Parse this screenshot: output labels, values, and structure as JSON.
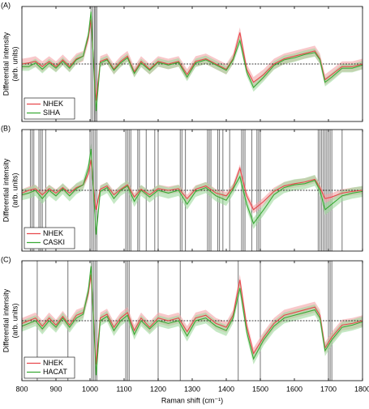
{
  "chart_data": [
    {
      "type": "line",
      "panel_label": "(A)",
      "ylabel": [
        "Differential intensity",
        "(arb. units)"
      ],
      "x": [
        800,
        820,
        840,
        860,
        880,
        900,
        920,
        940,
        960,
        980,
        995,
        1003,
        1010,
        1018,
        1030,
        1050,
        1070,
        1090,
        1110,
        1130,
        1150,
        1175,
        1200,
        1230,
        1260,
        1285,
        1310,
        1340,
        1370,
        1400,
        1420,
        1440,
        1460,
        1480,
        1510,
        1540,
        1570,
        1600,
        1630,
        1660,
        1675,
        1690,
        1710,
        1740,
        1770,
        1800
      ],
      "xlim": [
        800,
        1800
      ],
      "ylim": [
        -1.1,
        1.1
      ],
      "xticks": [
        800,
        900,
        1000,
        1100,
        1200,
        1300,
        1400,
        1500,
        1600,
        1700,
        1800
      ],
      "show_xtick_labels": false,
      "zero_line": true,
      "legend": "lower left",
      "highlights": [
        1003,
        1008,
        1013,
        1016,
        1020
      ],
      "series": [
        {
          "name": "NHEK",
          "color": "#e8474c",
          "band_color": "#f4a3a6",
          "error": 0.1,
          "values": [
            0,
            0.02,
            0.05,
            -0.05,
            0.05,
            -0.05,
            0.08,
            -0.05,
            0.1,
            0.15,
            0.5,
            0.85,
            0.1,
            -0.7,
            0.05,
            0.1,
            -0.1,
            0.05,
            0.15,
            -0.15,
            0.05,
            -0.1,
            0.05,
            0,
            0.05,
            -0.2,
            0.05,
            0.1,
            0,
            -0.1,
            0.1,
            0.6,
            -0.1,
            -0.35,
            -0.2,
            0,
            0.1,
            0.15,
            0.2,
            0.25,
            0.1,
            -0.3,
            -0.2,
            -0.05,
            -0.05,
            0
          ]
        },
        {
          "name": "SIHA",
          "color": "#3aaa35",
          "band_color": "#9fd89c",
          "error": 0.08,
          "values": [
            -0.05,
            -0.05,
            0.02,
            -0.1,
            0.02,
            -0.08,
            0.05,
            -0.08,
            0.08,
            0.15,
            0.55,
            1.0,
            0.05,
            -0.9,
            0.02,
            0.08,
            -0.12,
            0.02,
            0.12,
            -0.18,
            0.02,
            -0.12,
            0.03,
            -0.02,
            0.03,
            -0.25,
            0.02,
            0.08,
            -0.02,
            -0.12,
            0.08,
            0.45,
            -0.15,
            -0.45,
            -0.25,
            -0.03,
            0.08,
            0.12,
            0.18,
            0.22,
            0.08,
            -0.35,
            -0.25,
            -0.08,
            -0.08,
            -0.02
          ]
        }
      ]
    },
    {
      "type": "line",
      "panel_label": "(B)",
      "ylabel": [
        "Differential intensity",
        "(arb. units)"
      ],
      "x": [
        800,
        820,
        840,
        860,
        880,
        900,
        920,
        940,
        960,
        980,
        995,
        1003,
        1010,
        1018,
        1030,
        1050,
        1070,
        1090,
        1110,
        1130,
        1150,
        1175,
        1200,
        1230,
        1260,
        1285,
        1310,
        1340,
        1370,
        1400,
        1420,
        1440,
        1460,
        1480,
        1510,
        1540,
        1570,
        1600,
        1630,
        1660,
        1675,
        1690,
        1710,
        1740,
        1770,
        1800
      ],
      "xlim": [
        800,
        1800
      ],
      "ylim": [
        -1.1,
        1.1
      ],
      "xticks": [
        800,
        900,
        1000,
        1100,
        1200,
        1300,
        1400,
        1500,
        1600,
        1700,
        1800
      ],
      "show_xtick_labels": false,
      "zero_line": true,
      "legend": "lower left",
      "highlights": [
        825,
        830,
        835,
        850,
        855,
        860,
        870,
        1000,
        1005,
        1010,
        1015,
        1020,
        1105,
        1110,
        1115,
        1120,
        1140,
        1145,
        1165,
        1190,
        1200,
        1265,
        1270,
        1280,
        1345,
        1350,
        1355,
        1375,
        1380,
        1390,
        1410,
        1445,
        1450,
        1455,
        1475,
        1490,
        1495,
        1500,
        1670,
        1675,
        1680,
        1685,
        1690,
        1695,
        1700,
        1705,
        1710,
        1740
      ],
      "series": [
        {
          "name": "NHEK",
          "color": "#e8474c",
          "band_color": "#f4a3a6",
          "error": 0.07,
          "values": [
            -0.05,
            0,
            0.03,
            -0.08,
            0.03,
            -0.05,
            0.05,
            -0.05,
            0.05,
            0.1,
            0.3,
            0.55,
            0.05,
            -0.35,
            0.02,
            0.08,
            -0.08,
            0.02,
            0.1,
            -0.12,
            0.02,
            -0.08,
            0.03,
            0,
            0.03,
            -0.15,
            0.02,
            0.08,
            -0.05,
            -0.1,
            0.05,
            0.4,
            -0.1,
            -0.35,
            -0.2,
            -0.02,
            0.08,
            0.12,
            0.15,
            0.2,
            0.05,
            -0.15,
            -0.12,
            -0.05,
            -0.02,
            0
          ]
        },
        {
          "name": "CASKI",
          "color": "#3aaa35",
          "band_color": "#9fd89c",
          "error": 0.1,
          "values": [
            -0.08,
            -0.05,
            0,
            -0.15,
            0,
            -0.1,
            0.03,
            -0.1,
            0.03,
            0.1,
            0.4,
            0.75,
            0,
            -0.8,
            -0.02,
            0.05,
            -0.15,
            0,
            0.08,
            -0.2,
            0,
            -0.12,
            0,
            -0.05,
            0,
            -0.25,
            -0.02,
            0.05,
            -0.1,
            -0.18,
            0.02,
            0.25,
            -0.25,
            -0.6,
            -0.35,
            -0.08,
            0.05,
            0.1,
            0.12,
            0.18,
            0,
            -0.35,
            -0.25,
            -0.1,
            -0.05,
            -0.02
          ]
        }
      ]
    },
    {
      "type": "line",
      "panel_label": "(C)",
      "ylabel": [
        "Differential intensity",
        "(arb. units)"
      ],
      "xlabel": "Raman shift (cm⁻¹)",
      "x": [
        800,
        820,
        840,
        860,
        880,
        900,
        920,
        940,
        960,
        980,
        995,
        1003,
        1010,
        1018,
        1030,
        1050,
        1070,
        1090,
        1110,
        1130,
        1150,
        1175,
        1200,
        1230,
        1260,
        1285,
        1310,
        1340,
        1370,
        1400,
        1420,
        1440,
        1460,
        1480,
        1510,
        1540,
        1570,
        1600,
        1630,
        1660,
        1675,
        1690,
        1710,
        1740,
        1770,
        1800
      ],
      "xlim": [
        800,
        1800
      ],
      "ylim": [
        -1.1,
        1.1
      ],
      "xticks": [
        800,
        900,
        1000,
        1100,
        1200,
        1300,
        1400,
        1500,
        1600,
        1700,
        1800
      ],
      "show_xtick_labels": true,
      "zero_line": true,
      "legend": "lower left",
      "highlights": [
        845,
        935,
        1005,
        1010,
        1015,
        1020,
        1105,
        1110,
        1115,
        1200,
        1265,
        1435,
        1500,
        1700,
        1705,
        1710
      ],
      "series": [
        {
          "name": "NHEK",
          "color": "#e8474c",
          "band_color": "#f4a3a6",
          "error": 0.1,
          "values": [
            -0.05,
            0,
            0.05,
            -0.1,
            0.05,
            -0.08,
            0.08,
            -0.08,
            0.1,
            0.15,
            0.5,
            0.85,
            0.1,
            -0.8,
            0.05,
            0.12,
            -0.12,
            0.05,
            0.15,
            -0.18,
            0.05,
            -0.12,
            0.05,
            0,
            0.05,
            -0.2,
            0.05,
            0.1,
            -0.05,
            -0.12,
            0.1,
            0.75,
            -0.1,
            -0.6,
            -0.3,
            -0.05,
            0.1,
            0.15,
            0.2,
            0.25,
            0.1,
            -0.5,
            -0.3,
            -0.08,
            -0.05,
            0
          ]
        },
        {
          "name": "HACAT",
          "color": "#3aaa35",
          "band_color": "#9fd89c",
          "error": 0.1,
          "values": [
            -0.1,
            -0.05,
            0,
            -0.15,
            0,
            -0.12,
            0.05,
            -0.12,
            0.05,
            0.12,
            0.55,
            1.0,
            0.05,
            -1.0,
            0,
            0.08,
            -0.18,
            0,
            0.1,
            -0.25,
            0,
            -0.15,
            0,
            -0.05,
            0,
            -0.28,
            0,
            0.05,
            -0.1,
            -0.18,
            0.05,
            0.6,
            -0.2,
            -0.7,
            -0.35,
            -0.1,
            0.05,
            0.1,
            0.15,
            0.2,
            0.05,
            -0.55,
            -0.35,
            -0.12,
            -0.08,
            -0.02
          ]
        }
      ]
    }
  ]
}
